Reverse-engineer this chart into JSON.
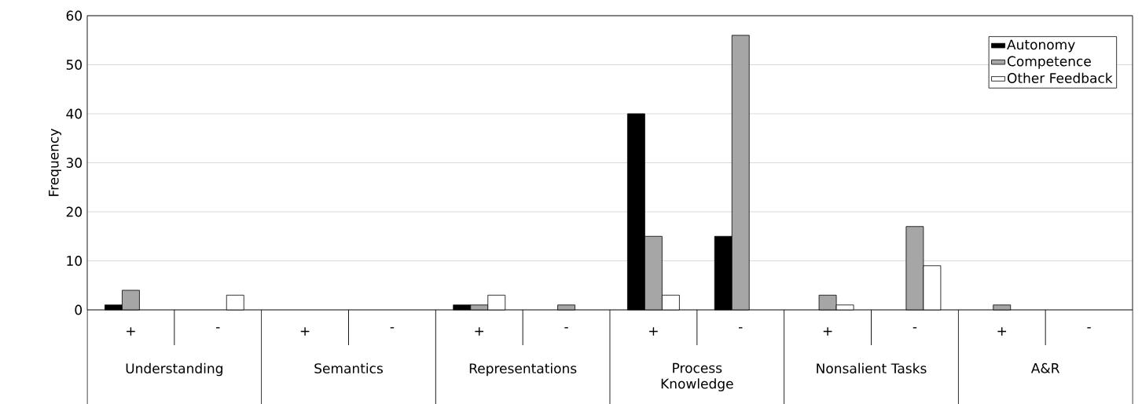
{
  "chart_data": {
    "type": "bar",
    "ylabel": "Frequency",
    "categories": [
      "+",
      "-",
      "+",
      "-",
      "+",
      "-",
      "+",
      "-",
      "+",
      "-",
      "+",
      "-"
    ],
    "series": [
      {
        "name": "Autonomy",
        "color": "#000000",
        "values": [
          1,
          0,
          0,
          0,
          1,
          0,
          40,
          15,
          0,
          0,
          0,
          0
        ]
      },
      {
        "name": "Competence",
        "color": "#a6a6a6",
        "values": [
          4,
          0,
          0,
          0,
          1,
          1,
          15,
          56,
          3,
          17,
          1,
          0
        ]
      },
      {
        "name": "Other Feedback",
        "color": "#ffffff",
        "values": [
          0,
          3,
          0,
          0,
          3,
          0,
          3,
          0,
          1,
          9,
          0,
          0
        ]
      }
    ],
    "annotations": [
      "Understanding",
      "Semantics",
      "Representations",
      "Process Knowledge",
      "Nonsalient Tasks",
      "A&R"
    ],
    "ylim": [
      0,
      60
    ],
    "yticks": [
      0,
      10,
      20,
      30,
      40,
      50,
      60
    ],
    "grid": "y",
    "legend": "top right"
  }
}
